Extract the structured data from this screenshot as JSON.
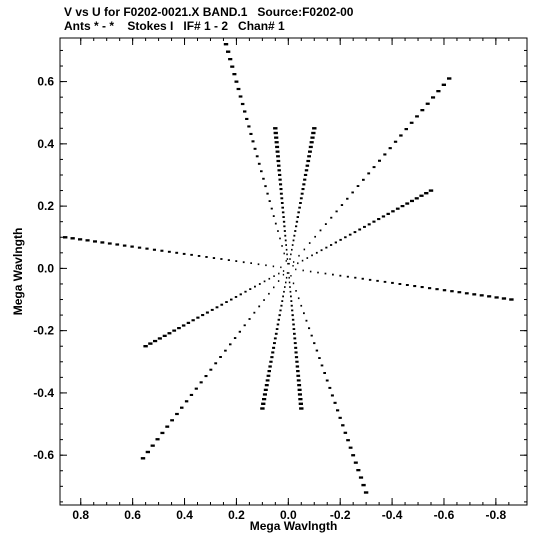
{
  "header": {
    "title_line1": "V vs U for F0202-0021.X BAND.1   Source:F0202-00",
    "title_line2": "Ants * - *    Stokes I   IF# 1 - 2   Chan# 1"
  },
  "chart_data": {
    "type": "scatter",
    "title": "V vs U for F0202-0021.X BAND.1   Source:F0202-00",
    "subtitle": "Ants * - *    Stokes I   IF# 1 - 2   Chan# 1",
    "xlabel": "Mega Wavlngth",
    "ylabel": "Mega Wavlngth",
    "xlim": [
      0.88,
      -0.92
    ],
    "ylim": [
      -0.76,
      0.74
    ],
    "x_ticks": [
      0.8,
      0.6,
      0.4,
      0.2,
      0.0,
      -0.2,
      -0.4,
      -0.6,
      -0.8
    ],
    "x_tick_labels": [
      "0.8",
      "0.6",
      "0.4",
      "0.2",
      "0.0",
      "-0.2",
      "-0.4",
      "-0.6",
      "-0.8"
    ],
    "y_ticks": [
      0.6,
      0.4,
      0.2,
      0.0,
      -0.2,
      -0.4,
      -0.6
    ],
    "y_tick_labels": [
      "0.6",
      "0.4",
      "0.2",
      "0.0",
      "-0.2",
      "-0.4",
      "-0.6"
    ],
    "grid": false,
    "marker_color": "#000000",
    "uv_arms": [
      {
        "u": 0.24,
        "v": 0.72
      },
      {
        "u": -0.62,
        "v": 0.61
      },
      {
        "u": 0.86,
        "v": 0.1
      },
      {
        "u": -0.86,
        "v": -0.1
      },
      {
        "u": 0.56,
        "v": -0.61
      },
      {
        "u": -0.3,
        "v": -0.72
      },
      {
        "u": -0.55,
        "v": 0.25
      },
      {
        "u": 0.55,
        "v": -0.25
      },
      {
        "u": 0.05,
        "v": 0.45
      },
      {
        "u": -0.05,
        "v": -0.45
      },
      {
        "u": -0.1,
        "v": 0.45
      },
      {
        "u": 0.1,
        "v": -0.45
      }
    ]
  }
}
